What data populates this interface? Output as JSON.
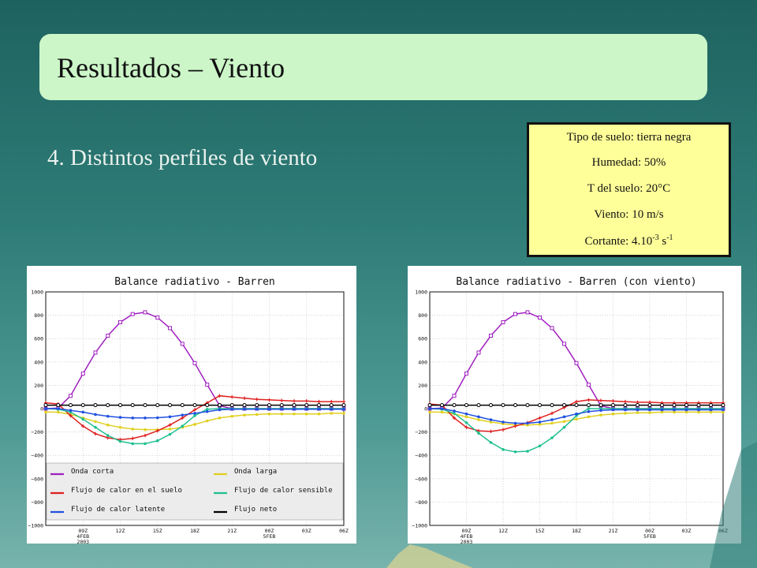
{
  "slide": {
    "title": "Resultados – Viento",
    "subtitle": "4. Distintos perfiles de viento"
  },
  "params": {
    "soil": "Tipo de suelo: tierra negra",
    "humidity": "Humedad: 50%",
    "soil_temp": "T del suelo: 20°C",
    "wind": "Viento: 10 m/s",
    "shear_base": "Cortante: 4.10",
    "shear_exp": "-3",
    "shear_unit": " s",
    "shear_unit_exp": "-1"
  },
  "colors": {
    "onda_corta": "#a020c0",
    "onda_larga": "#e0d020",
    "suelo": "#e02020",
    "sensible": "#20c090",
    "latente": "#2050e0",
    "neto": "#000000"
  },
  "chart_data": [
    {
      "type": "line",
      "title": "Balance radiativo - Barren",
      "ylim": [
        -1000,
        1000
      ],
      "yticks": [
        1000,
        800,
        600,
        400,
        200,
        0,
        -200,
        -400,
        -600,
        -800,
        -1000
      ],
      "ytick_labels": [
        "1000",
        "800",
        "600",
        "400",
        "200",
        "0",
        "−200",
        "−400",
        "−600",
        "−800",
        "−1000"
      ],
      "xlim": [
        0,
        24
      ],
      "xticks": [
        3,
        6,
        9,
        12,
        15,
        18,
        21,
        24
      ],
      "xtick_labels": [
        [
          "09Z",
          "4FEB",
          "2003"
        ],
        [
          "12Z"
        ],
        [
          "15Z"
        ],
        [
          "18Z"
        ],
        [
          "21Z"
        ],
        [
          "00Z",
          "5FEB"
        ],
        [
          "03Z"
        ],
        [
          "06Z"
        ]
      ],
      "legend": {
        "placement": "bottom",
        "entries": [
          "Onda corta",
          "Onda larga",
          "Flujo de calor en el suelo",
          "Flujo de calor sensible",
          "Flujo de calor latente",
          "Flujo neto"
        ]
      },
      "series": [
        {
          "name": "Onda corta",
          "x": [
            0,
            1,
            2,
            3,
            4,
            5,
            6,
            7,
            8,
            9,
            10,
            11,
            12,
            13,
            14,
            15,
            16,
            17,
            18,
            19,
            20,
            21,
            22,
            23,
            24
          ],
          "values": [
            0,
            5,
            110,
            300,
            480,
            625,
            740,
            810,
            825,
            780,
            690,
            555,
            390,
            205,
            25,
            0,
            0,
            0,
            0,
            0,
            0,
            0,
            0,
            0,
            0
          ]
        },
        {
          "name": "Onda larga",
          "x": [
            0,
            1,
            2,
            3,
            4,
            5,
            6,
            7,
            8,
            9,
            10,
            11,
            12,
            13,
            14,
            15,
            16,
            17,
            18,
            19,
            20,
            21,
            22,
            23,
            24
          ],
          "values": [
            -30,
            -30,
            -50,
            -80,
            -110,
            -140,
            -160,
            -175,
            -180,
            -180,
            -175,
            -160,
            -135,
            -105,
            -80,
            -65,
            -55,
            -50,
            -45,
            -45,
            -45,
            -45,
            -45,
            -40,
            -40
          ]
        },
        {
          "name": "Flujo de calor en el suelo",
          "x": [
            0,
            1,
            2,
            3,
            4,
            5,
            6,
            7,
            8,
            9,
            10,
            11,
            12,
            13,
            14,
            15,
            16,
            17,
            18,
            19,
            20,
            21,
            22,
            23,
            24
          ],
          "values": [
            50,
            40,
            -60,
            -150,
            -215,
            -250,
            -265,
            -255,
            -230,
            -190,
            -140,
            -80,
            -10,
            50,
            110,
            100,
            90,
            80,
            75,
            70,
            65,
            65,
            60,
            60,
            60
          ]
        },
        {
          "name": "Flujo de calor sensible",
          "x": [
            0,
            1,
            2,
            3,
            4,
            5,
            6,
            7,
            8,
            9,
            10,
            11,
            12,
            13,
            14,
            15,
            16,
            17,
            18,
            19,
            20,
            21,
            22,
            23,
            24
          ],
          "values": [
            0,
            -5,
            -30,
            -90,
            -160,
            -230,
            -280,
            -300,
            -300,
            -275,
            -220,
            -150,
            -60,
            -5,
            0,
            0,
            0,
            0,
            0,
            0,
            0,
            0,
            0,
            0,
            0
          ]
        },
        {
          "name": "Flujo de calor latente",
          "x": [
            0,
            1,
            2,
            3,
            4,
            5,
            6,
            7,
            8,
            9,
            10,
            11,
            12,
            13,
            14,
            15,
            16,
            17,
            18,
            19,
            20,
            21,
            22,
            23,
            24
          ],
          "values": [
            0,
            0,
            -15,
            -30,
            -50,
            -65,
            -75,
            -80,
            -80,
            -78,
            -70,
            -55,
            -40,
            -25,
            -10,
            -5,
            -5,
            -5,
            -5,
            -5,
            -5,
            -5,
            -5,
            -5,
            -5
          ]
        },
        {
          "name": "Flujo neto",
          "x": [
            0,
            1,
            2,
            3,
            4,
            5,
            6,
            7,
            8,
            9,
            10,
            11,
            12,
            13,
            14,
            15,
            16,
            17,
            18,
            19,
            20,
            21,
            22,
            23,
            24
          ],
          "values": [
            30,
            30,
            30,
            30,
            30,
            30,
            30,
            30,
            30,
            30,
            30,
            30,
            30,
            30,
            30,
            30,
            30,
            30,
            30,
            30,
            30,
            30,
            30,
            30,
            30
          ]
        }
      ]
    },
    {
      "type": "line",
      "title": "Balance radiativo - Barren (con viento)",
      "ylim": [
        -1000,
        1000
      ],
      "yticks": [
        1000,
        800,
        600,
        400,
        200,
        0,
        -200,
        -400,
        -600,
        -800,
        -1000
      ],
      "ytick_labels": [
        "1000",
        "800",
        "600",
        "400",
        "200",
        "0",
        "−200",
        "−400",
        "−600",
        "−800",
        "−1000"
      ],
      "xlim": [
        0,
        24
      ],
      "xticks": [
        3,
        6,
        9,
        12,
        15,
        18,
        21,
        24
      ],
      "xtick_labels": [
        [
          "09Z",
          "4FEB",
          "2003"
        ],
        [
          "12Z"
        ],
        [
          "15Z"
        ],
        [
          "18Z"
        ],
        [
          "21Z"
        ],
        [
          "00Z",
          "5FEB"
        ],
        [
          "03Z"
        ],
        [
          "06Z"
        ]
      ],
      "series": [
        {
          "name": "Onda corta",
          "x": [
            0,
            1,
            2,
            3,
            4,
            5,
            6,
            7,
            8,
            9,
            10,
            11,
            12,
            13,
            14,
            15,
            16,
            17,
            18,
            19,
            20,
            21,
            22,
            23,
            24
          ],
          "values": [
            0,
            5,
            110,
            300,
            480,
            625,
            740,
            810,
            825,
            780,
            690,
            555,
            390,
            205,
            25,
            0,
            0,
            0,
            0,
            0,
            0,
            0,
            0,
            0,
            0
          ]
        },
        {
          "name": "Onda larga",
          "x": [
            0,
            1,
            2,
            3,
            4,
            5,
            6,
            7,
            8,
            9,
            10,
            11,
            12,
            13,
            14,
            15,
            16,
            17,
            18,
            19,
            20,
            21,
            22,
            23,
            24
          ],
          "values": [
            -30,
            -30,
            -45,
            -70,
            -95,
            -115,
            -130,
            -140,
            -140,
            -135,
            -125,
            -110,
            -90,
            -70,
            -55,
            -45,
            -40,
            -35,
            -35,
            -30,
            -30,
            -30,
            -30,
            -30,
            -30
          ]
        },
        {
          "name": "Flujo de calor en el suelo",
          "x": [
            0,
            1,
            2,
            3,
            4,
            5,
            6,
            7,
            8,
            9,
            10,
            11,
            12,
            13,
            14,
            15,
            16,
            17,
            18,
            19,
            20,
            21,
            22,
            23,
            24
          ],
          "values": [
            40,
            30,
            -80,
            -160,
            -190,
            -195,
            -180,
            -150,
            -120,
            -80,
            -40,
            10,
            60,
            75,
            70,
            65,
            60,
            55,
            55,
            50,
            50,
            50,
            50,
            50,
            50
          ]
        },
        {
          "name": "Flujo de calor sensible",
          "x": [
            0,
            1,
            2,
            3,
            4,
            5,
            6,
            7,
            8,
            9,
            10,
            11,
            12,
            13,
            14,
            15,
            16,
            17,
            18,
            19,
            20,
            21,
            22,
            23,
            24
          ],
          "values": [
            0,
            -5,
            -40,
            -120,
            -210,
            -290,
            -350,
            -370,
            -365,
            -320,
            -250,
            -160,
            -60,
            0,
            0,
            0,
            0,
            0,
            0,
            0,
            0,
            0,
            0,
            0,
            0
          ]
        },
        {
          "name": "Flujo de calor latente",
          "x": [
            0,
            1,
            2,
            3,
            4,
            5,
            6,
            7,
            8,
            9,
            10,
            11,
            12,
            13,
            14,
            15,
            16,
            17,
            18,
            19,
            20,
            21,
            22,
            23,
            24
          ],
          "values": [
            0,
            0,
            -20,
            -45,
            -70,
            -95,
            -115,
            -125,
            -125,
            -115,
            -95,
            -70,
            -45,
            -25,
            -15,
            -10,
            -10,
            -10,
            -10,
            -10,
            -10,
            -10,
            -10,
            -10,
            -10
          ]
        },
        {
          "name": "Flujo neto",
          "x": [
            0,
            1,
            2,
            3,
            4,
            5,
            6,
            7,
            8,
            9,
            10,
            11,
            12,
            13,
            14,
            15,
            16,
            17,
            18,
            19,
            20,
            21,
            22,
            23,
            24
          ],
          "values": [
            30,
            30,
            30,
            30,
            30,
            30,
            30,
            30,
            30,
            30,
            30,
            30,
            30,
            30,
            30,
            30,
            30,
            30,
            30,
            30,
            30,
            30,
            30,
            30,
            30
          ]
        }
      ]
    }
  ]
}
